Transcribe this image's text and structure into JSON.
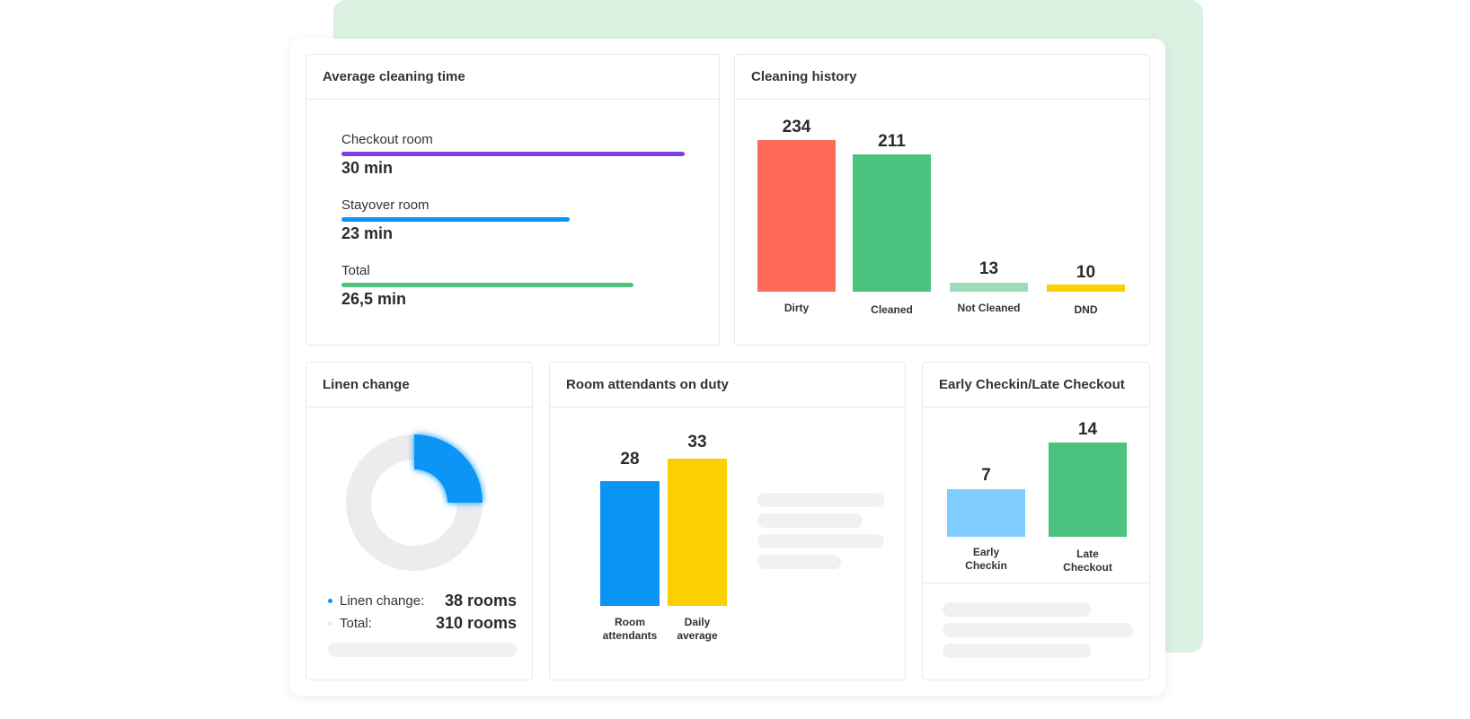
{
  "avg_cleaning": {
    "title": "Average cleaning time",
    "items": [
      {
        "label": "Checkout room",
        "value": "30 min",
        "fill": 1.0,
        "color": "#7b3fe4"
      },
      {
        "label": "Stayover room",
        "value": "23 min",
        "fill": 0.665,
        "color": "#0a95f5"
      },
      {
        "label": "Total",
        "value": "26,5 min",
        "fill": 0.85,
        "color": "#4bc27d"
      }
    ]
  },
  "cleaning_history": {
    "title": "Cleaning history",
    "bars": [
      {
        "label": "Dirty",
        "value": "234",
        "color": "#ff6b5b"
      },
      {
        "label": "Cleaned",
        "value": "211",
        "color": "#4bc27d"
      },
      {
        "label": "Not Cleaned",
        "value": "13",
        "color": "#9ddcb8"
      },
      {
        "label": "DND",
        "value": "10",
        "color": "#fcd000"
      }
    ]
  },
  "linen_change": {
    "title": "Linen change",
    "legend": [
      {
        "label": "Linen change:",
        "value": "38 rooms",
        "color": "#0a95f5"
      },
      {
        "label": "Total:",
        "value": "310 rooms",
        "color": "#ececec"
      }
    ]
  },
  "attendants": {
    "title": "Room attendants on duty",
    "bars": [
      {
        "label_line1": "Room",
        "label_line2": "attendants",
        "value": "28",
        "color": "#0a95f5"
      },
      {
        "label_line1": "Daily",
        "label_line2": "average",
        "value": "33",
        "color": "#fcd000"
      }
    ]
  },
  "early_late": {
    "title": "Early Checkin/Late Checkout",
    "bars": [
      {
        "label_line1": "Early",
        "label_line2": "Checkin",
        "value": "7",
        "color": "#80ccff"
      },
      {
        "label_line1": "Late",
        "label_line2": "Checkout",
        "value": "14",
        "color": "#4bc27d"
      }
    ]
  }
}
